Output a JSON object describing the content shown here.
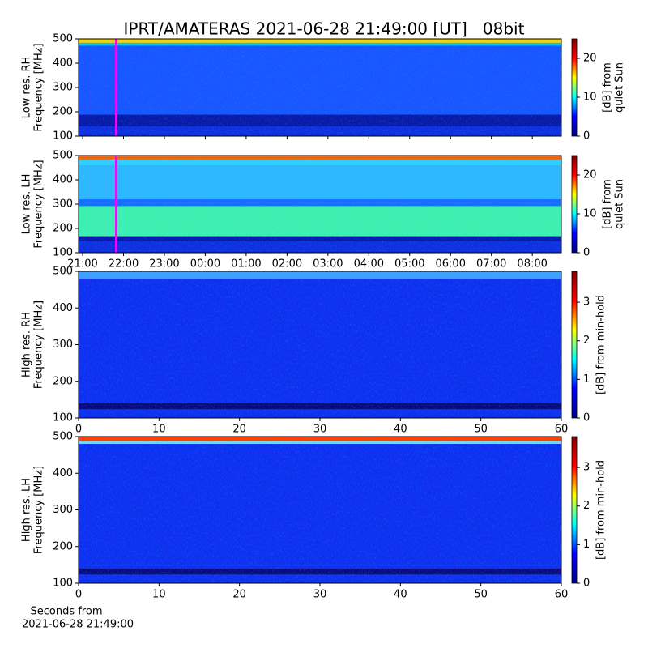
{
  "chart_data": [
    {
      "type": "heatmap",
      "title": "IPRT/AMATERAS 2021-06-28 21:49:00 [UT]   08bit",
      "ylabel": [
        "Low res. RH",
        "Frequency [MHz]"
      ],
      "ylim": [
        100,
        500
      ],
      "yticks": [
        100,
        200,
        300,
        400,
        500
      ],
      "xlim": [
        20.9,
        32.71
      ],
      "cursor": 21.817,
      "cursor_color": "#ff00ff",
      "colorbar_label": [
        "[dB] from",
        "quiet Sun"
      ],
      "clim": [
        0,
        25
      ],
      "cticks": [
        0,
        10,
        20
      ],
      "colormap": [
        "#00007f",
        "#0000ff",
        "#00ffff",
        "#ffff00",
        "#ff0000",
        "#7f0000"
      ]
    },
    {
      "type": "heatmap",
      "ylabel": [
        "Low res. LH",
        "Frequency [MHz]"
      ],
      "ylim": [
        100,
        500
      ],
      "yticks": [
        100,
        200,
        300,
        400,
        500
      ],
      "xlim": [
        20.9,
        32.71
      ],
      "cursor": 21.817,
      "cursor_color": "#ff00ff",
      "xticks": [
        {
          "value": 21,
          "label": "21:00"
        },
        {
          "value": 22,
          "label": "22:00"
        },
        {
          "value": 23,
          "label": "23:00"
        },
        {
          "value": 24,
          "label": "00:00"
        },
        {
          "value": 25,
          "label": "01:00"
        },
        {
          "value": 26,
          "label": "02:00"
        },
        {
          "value": 27,
          "label": "03:00"
        },
        {
          "value": 28,
          "label": "04:00"
        },
        {
          "value": 29,
          "label": "05:00"
        },
        {
          "value": 30,
          "label": "06:00"
        },
        {
          "value": 31,
          "label": "07:00"
        },
        {
          "value": 32,
          "label": "08:00"
        }
      ],
      "colorbar_label": [
        "[dB] from",
        "quiet Sun"
      ],
      "clim": [
        0,
        25
      ],
      "cticks": [
        0,
        10,
        20
      ],
      "colormap": [
        "#00007f",
        "#0000ff",
        "#00ffff",
        "#ffff00",
        "#ff0000",
        "#7f0000"
      ]
    },
    {
      "type": "heatmap",
      "ylabel": [
        "High res. RH",
        "Frequency [MHz]"
      ],
      "ylim": [
        100,
        500
      ],
      "yticks": [
        100,
        200,
        300,
        400,
        500
      ],
      "xlim": [
        0,
        60
      ],
      "xticks": [
        0,
        10,
        20,
        30,
        40,
        50,
        60
      ],
      "colorbar_label": [
        "[dB] from min-hold"
      ],
      "clim": [
        0,
        3.8
      ],
      "cticks": [
        0,
        1,
        2,
        3
      ],
      "colormap": [
        "#00007f",
        "#0000ff",
        "#00ffff",
        "#ffff00",
        "#ff0000",
        "#7f0000"
      ]
    },
    {
      "type": "heatmap",
      "ylabel": [
        "High res. LH",
        "Frequency [MHz]"
      ],
      "ylim": [
        100,
        500
      ],
      "yticks": [
        100,
        200,
        300,
        400,
        500
      ],
      "xlim": [
        0,
        60
      ],
      "xticks": [
        0,
        10,
        20,
        30,
        40,
        50,
        60
      ],
      "xlabel": [
        "Seconds from",
        "2021-06-28 21:49:00"
      ],
      "colorbar_label": [
        "[dB] from min-hold"
      ],
      "clim": [
        0,
        3.8
      ],
      "cticks": [
        0,
        1,
        2,
        3
      ],
      "colormap": [
        "#00007f",
        "#0000ff",
        "#00ffff",
        "#ffff00",
        "#ff0000",
        "#7f0000"
      ]
    }
  ]
}
